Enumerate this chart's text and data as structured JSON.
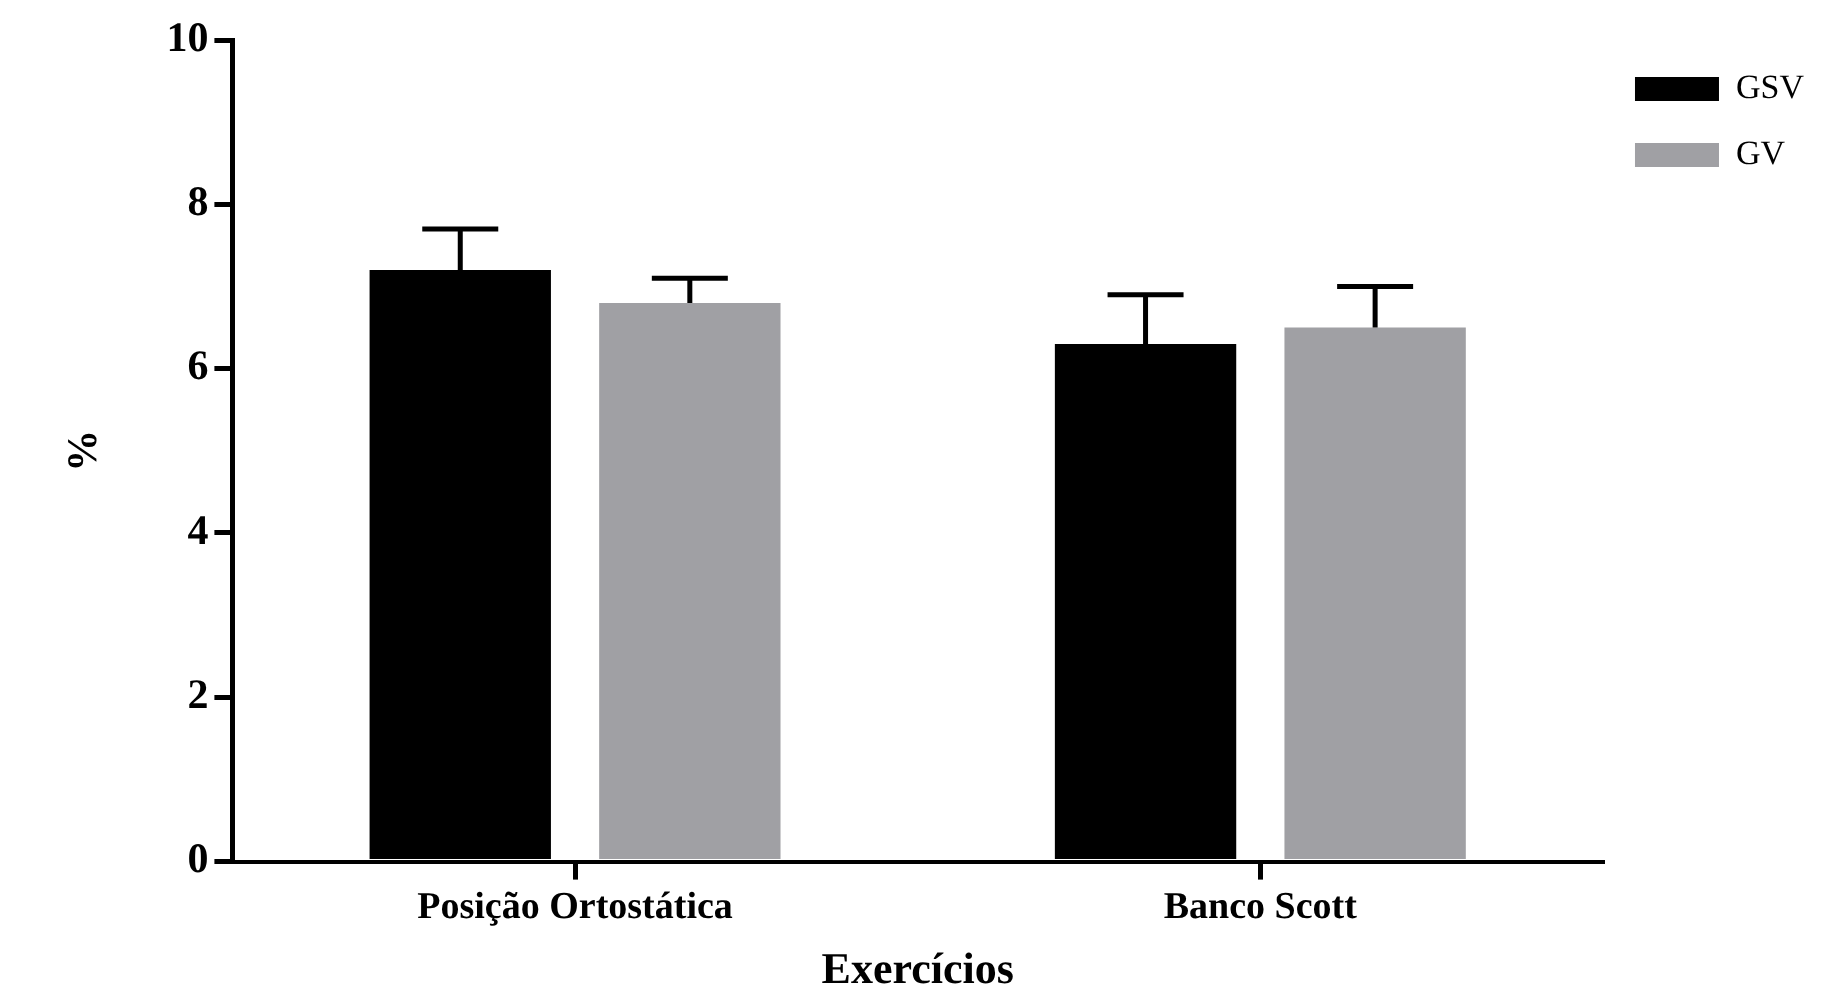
{
  "chart_data": {
    "type": "bar",
    "xlabel": "Exercícios",
    "ylabel": "%",
    "categories": [
      "Posição Ortostática",
      "Banco Scott"
    ],
    "series": [
      {
        "name": "GSV",
        "color": "#000000",
        "values": [
          7.2,
          6.3
        ],
        "errors": [
          [
            7.2,
            7.7
          ],
          [
            6.3,
            6.9
          ]
        ]
      },
      {
        "name": "GV",
        "color": "#a0a0a4",
        "values": [
          6.8,
          6.5
        ],
        "errors": [
          [
            6.8,
            7.1
          ],
          [
            6.5,
            7.0
          ]
        ]
      }
    ],
    "ylim": [
      0,
      10
    ],
    "yticks": [
      0,
      2,
      4,
      6,
      8,
      10
    ],
    "grid": false,
    "legend": "top right"
  }
}
